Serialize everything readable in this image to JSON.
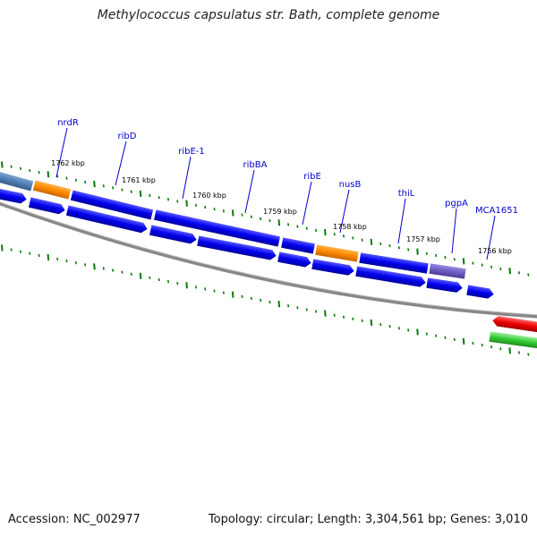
{
  "title": "Methylococcus capsulatus str. Bath, complete genome",
  "footer": {
    "accession": "Accession: NC_002977",
    "summary": "Topology: circular; Length: 3,304,561 bp; Genes: 3,010"
  },
  "colors": {
    "cds": "#0000ee",
    "rna": "#ff8800",
    "highlight": "#6e5cc0",
    "other": "#4f7fb6",
    "tick": "#0a7a0a",
    "backbone": "#888888",
    "label": "#0000cc",
    "red_feature": "#ee0000",
    "green_feature": "#33cc33"
  },
  "kbp_labels": [
    "1762 kbp",
    "1761 kbp",
    "1760 kbp",
    "1759 kbp",
    "1758 kbp",
    "1757 kbp",
    "1756 kbp"
  ],
  "gene_labels": [
    "nrdR",
    "ribD",
    "ribE-1",
    "ribBA",
    "ribE",
    "nusB",
    "thiL",
    "pgpA",
    "MCA1651"
  ]
}
